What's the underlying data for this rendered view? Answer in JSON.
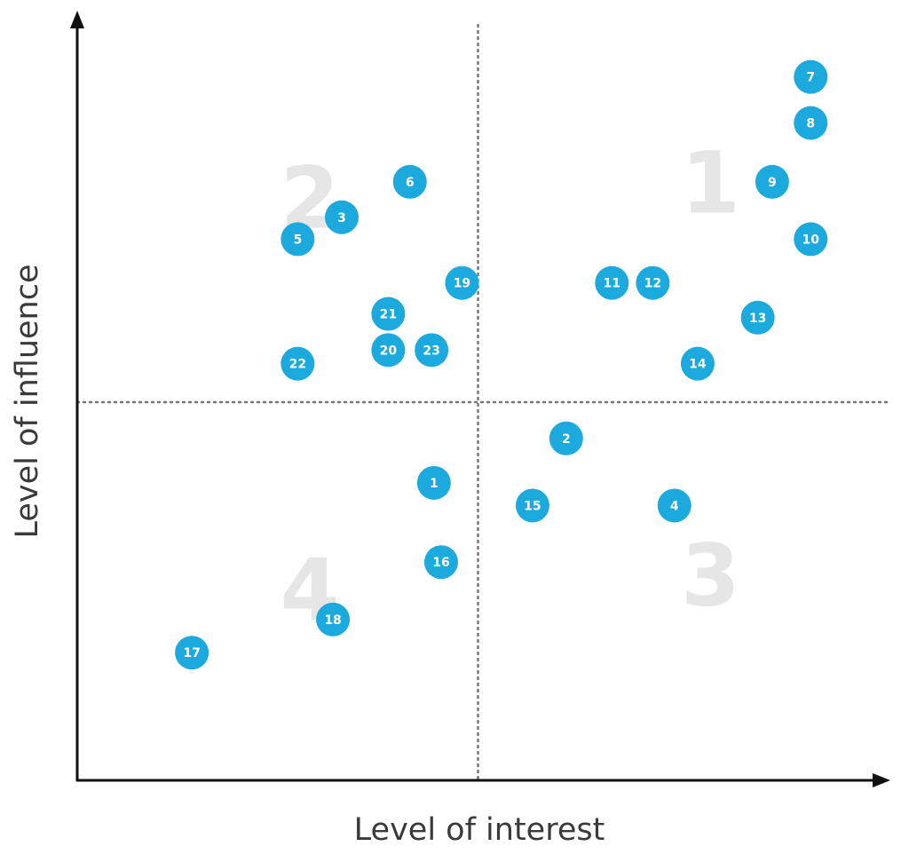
{
  "chart_data": {
    "type": "scatter",
    "title": "",
    "xlabel": "Level of interest",
    "ylabel": "Level of influence",
    "xlim": [
      0,
      100
    ],
    "ylim": [
      0,
      100
    ],
    "x_divider": 50,
    "y_divider": 50,
    "grid": false,
    "point_color": "#1ba9de",
    "quadrant_label_color": "#e6e6e6",
    "quadrants": [
      {
        "label": "1",
        "x": 79,
        "y": 79
      },
      {
        "label": "2",
        "x": 29,
        "y": 77
      },
      {
        "label": "4",
        "x": 29,
        "y": 25
      },
      {
        "label": "3",
        "x": 79,
        "y": 27
      }
    ],
    "points": [
      {
        "label": "1",
        "x": 44.5,
        "y": 39.3
      },
      {
        "label": "2",
        "x": 61.0,
        "y": 45.2
      },
      {
        "label": "3",
        "x": 33.0,
        "y": 74.5
      },
      {
        "label": "4",
        "x": 74.5,
        "y": 36.3
      },
      {
        "label": "5",
        "x": 27.5,
        "y": 71.6
      },
      {
        "label": "6",
        "x": 41.5,
        "y": 79.2
      },
      {
        "label": "7",
        "x": 91.5,
        "y": 93.1
      },
      {
        "label": "8",
        "x": 91.5,
        "y": 87.0
      },
      {
        "label": "9",
        "x": 86.7,
        "y": 79.2
      },
      {
        "label": "10",
        "x": 91.5,
        "y": 71.6
      },
      {
        "label": "11",
        "x": 66.7,
        "y": 65.8
      },
      {
        "label": "12",
        "x": 71.8,
        "y": 65.8
      },
      {
        "label": "13",
        "x": 84.9,
        "y": 61.2
      },
      {
        "label": "14",
        "x": 77.4,
        "y": 55.1
      },
      {
        "label": "15",
        "x": 56.8,
        "y": 36.3
      },
      {
        "label": "16",
        "x": 45.4,
        "y": 28.8
      },
      {
        "label": "17",
        "x": 14.3,
        "y": 16.8
      },
      {
        "label": "18",
        "x": 31.9,
        "y": 21.2
      },
      {
        "label": "19",
        "x": 48.0,
        "y": 65.8
      },
      {
        "label": "20",
        "x": 38.8,
        "y": 56.9
      },
      {
        "label": "21",
        "x": 38.8,
        "y": 61.7
      },
      {
        "label": "22",
        "x": 27.5,
        "y": 55.1
      },
      {
        "label": "23",
        "x": 44.2,
        "y": 56.9
      }
    ]
  }
}
